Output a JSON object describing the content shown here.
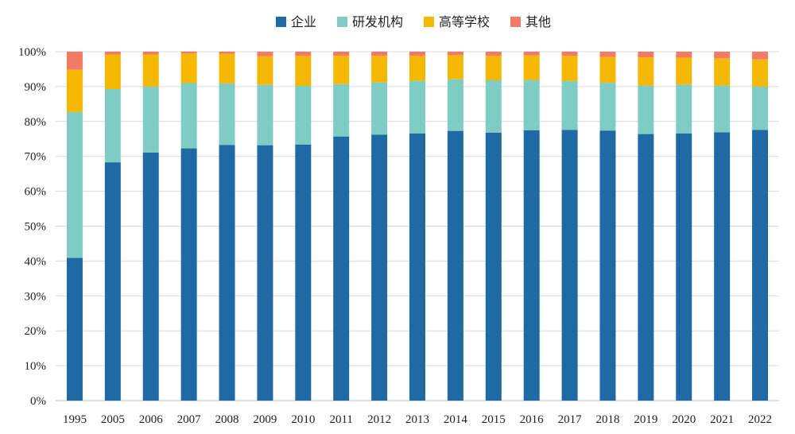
{
  "chart_data": {
    "type": "bar",
    "stacked": true,
    "percent": true,
    "title": "",
    "xlabel": "",
    "ylabel": "",
    "ylim": [
      0,
      100
    ],
    "y_ticks": [
      "0%",
      "10%",
      "20%",
      "30%",
      "40%",
      "50%",
      "60%",
      "70%",
      "80%",
      "90%",
      "100%"
    ],
    "grid": true,
    "legend_position": "top-center",
    "categories": [
      "1995",
      "2005",
      "2006",
      "2007",
      "2008",
      "2009",
      "2010",
      "2011",
      "2012",
      "2013",
      "2014",
      "2015",
      "2016",
      "2017",
      "2018",
      "2019",
      "2020",
      "2021",
      "2022"
    ],
    "series": [
      {
        "name": "企业",
        "color": "#1f6aa5",
        "values": [
          40.9,
          68.3,
          71.1,
          72.3,
          73.3,
          73.2,
          73.4,
          75.7,
          76.2,
          76.6,
          77.3,
          76.8,
          77.5,
          77.6,
          77.4,
          76.4,
          76.6,
          76.9,
          77.6
        ]
      },
      {
        "name": "研发机构",
        "color": "#7fccc4",
        "values": [
          41.8,
          21.0,
          18.9,
          18.7,
          17.6,
          17.3,
          16.8,
          15.0,
          15.0,
          15.0,
          14.8,
          15.0,
          14.4,
          14.0,
          13.7,
          13.9,
          14.0,
          13.4,
          12.4
        ]
      },
      {
        "name": "高等学校",
        "color": "#f5b800",
        "values": [
          12.1,
          9.9,
          9.2,
          8.5,
          8.5,
          8.2,
          8.6,
          8.1,
          7.6,
          7.2,
          6.9,
          7.0,
          7.0,
          7.2,
          7.4,
          8.1,
          7.7,
          7.8,
          7.8
        ]
      },
      {
        "name": "其他",
        "color": "#f47a68",
        "values": [
          5.2,
          0.8,
          0.8,
          0.5,
          0.6,
          1.3,
          1.2,
          1.2,
          1.2,
          1.2,
          1.0,
          1.2,
          1.1,
          1.2,
          1.5,
          1.6,
          1.7,
          1.9,
          2.2
        ]
      }
    ]
  }
}
